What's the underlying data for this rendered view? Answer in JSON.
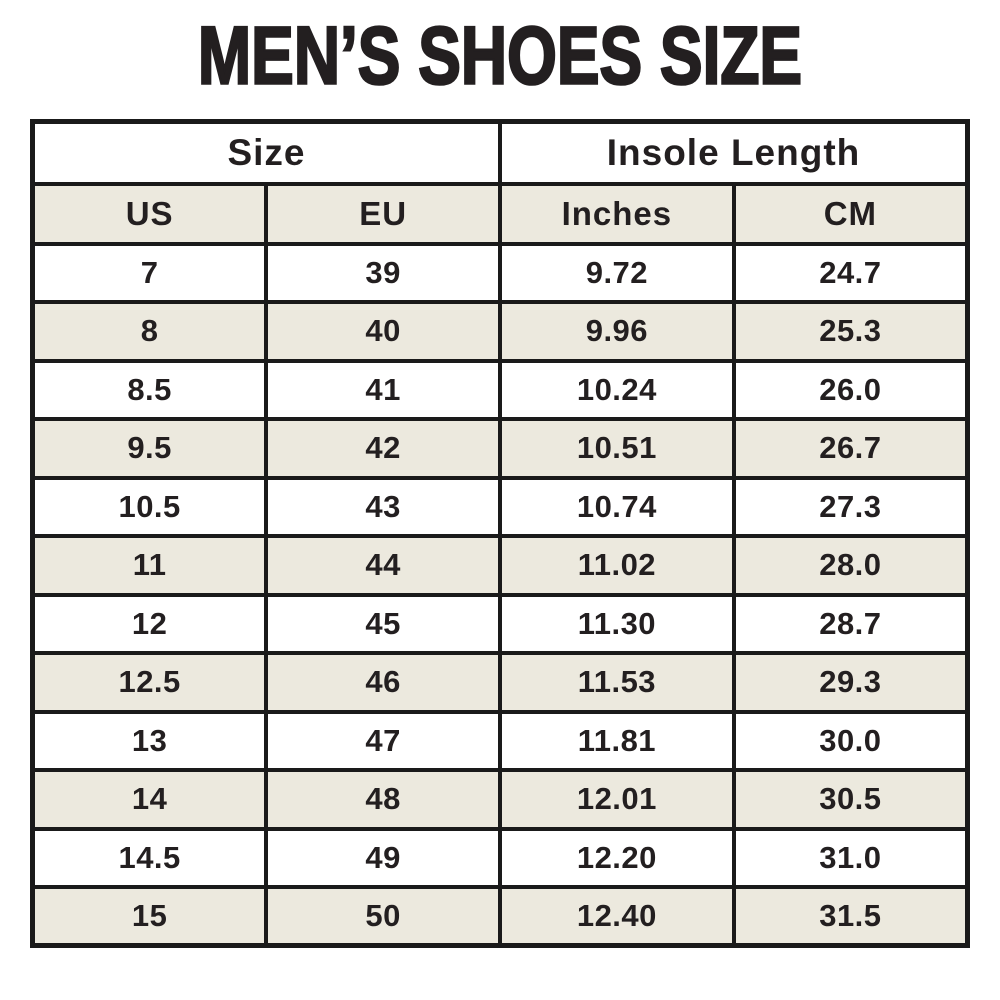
{
  "title": "MEN’S SHOES SIZE",
  "colors": {
    "text": "#231f20",
    "border": "#1a1a1a",
    "row_white": "#ffffff",
    "row_beige": "#ece9de",
    "background": "#ffffff"
  },
  "chart_data": {
    "type": "table",
    "title": "MEN’S SHOES SIZE",
    "column_groups": [
      {
        "label": "Size",
        "span": 2
      },
      {
        "label": "Insole Length",
        "span": 2
      }
    ],
    "columns": [
      "US",
      "EU",
      "Inches",
      "CM"
    ],
    "rows": [
      [
        "7",
        "39",
        "9.72",
        "24.7"
      ],
      [
        "8",
        "40",
        "9.96",
        "25.3"
      ],
      [
        "8.5",
        "41",
        "10.24",
        "26.0"
      ],
      [
        "9.5",
        "42",
        "10.51",
        "26.7"
      ],
      [
        "10.5",
        "43",
        "10.74",
        "27.3"
      ],
      [
        "11",
        "44",
        "11.02",
        "28.0"
      ],
      [
        "12",
        "45",
        "11.30",
        "28.7"
      ],
      [
        "12.5",
        "46",
        "11.53",
        "29.3"
      ],
      [
        "13",
        "47",
        "11.81",
        "30.0"
      ],
      [
        "14",
        "48",
        "12.01",
        "30.5"
      ],
      [
        "14.5",
        "49",
        "12.20",
        "31.0"
      ],
      [
        "15",
        "50",
        "12.40",
        "31.5"
      ]
    ],
    "layout": {
      "row_striping": "alternating white and beige starting with white",
      "all_text_bold": true,
      "alignment": "center"
    }
  }
}
